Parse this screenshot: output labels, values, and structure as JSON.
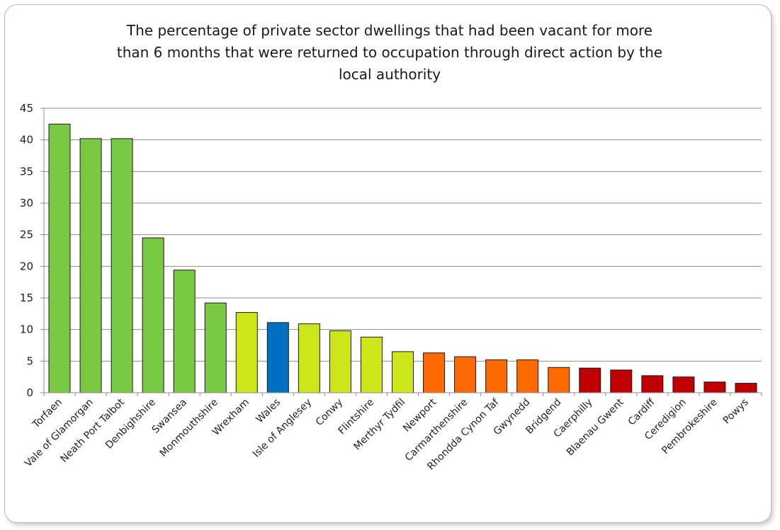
{
  "chart_data": {
    "type": "bar",
    "title": "The percentage of private sector dwellings that had been vacant for more than 6 months that were returned to occupation through direct action by the local authority",
    "title_lines": [
      "The percentage of private sector dwellings that had been vacant for more",
      "than 6 months that were returned to occupation through direct action by the",
      "local authority"
    ],
    "ylim": [
      0,
      45
    ],
    "yticks": [
      "0",
      "5",
      "10",
      "15",
      "20",
      "25",
      "30",
      "35",
      "40",
      "45"
    ],
    "grid": true,
    "categories": [
      "Torfaen",
      "Vale of Glamorgan",
      "Neath Port Talbot",
      "Denbighshire",
      "Swansea",
      "Monmouthshire",
      "Wrexham",
      "Wales",
      "Isle of Anglesey",
      "Conwy",
      "Flintshire",
      "Merthyr Tydfil",
      "Newport",
      "Carmarthenshire",
      "Rhondda Cynon Taf",
      "Gwynedd",
      "Bridgend",
      "Caerphilly",
      "Blaenau Gwent",
      "Cardiff",
      "Ceredigion",
      "Pembrokeshire",
      "Powys"
    ],
    "values": [
      42.5,
      40.2,
      40.2,
      24.5,
      19.4,
      14.2,
      12.7,
      11.1,
      10.9,
      9.8,
      8.8,
      6.5,
      6.3,
      5.7,
      5.2,
      5.2,
      4.0,
      3.9,
      3.6,
      2.7,
      2.5,
      1.7,
      1.5
    ],
    "bar_colors": [
      "#7ac943",
      "#7ac943",
      "#7ac943",
      "#7ac943",
      "#7ac943",
      "#7ac943",
      "#cce619",
      "#0070c0",
      "#cce619",
      "#cce619",
      "#cce619",
      "#cce619",
      "#ff6a00",
      "#ff6a00",
      "#ff6a00",
      "#ff6a00",
      "#ff6a00",
      "#c00000",
      "#c00000",
      "#c00000",
      "#c00000",
      "#c00000",
      "#c00000"
    ]
  }
}
